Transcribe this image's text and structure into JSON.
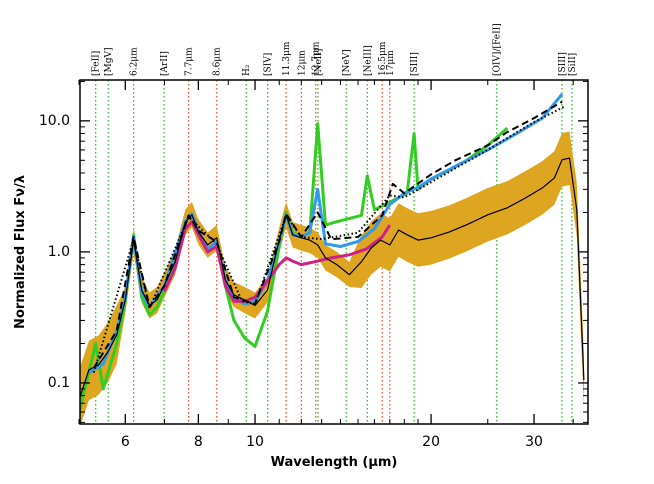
{
  "chart_data": {
    "type": "line",
    "x_label": "Wavelength (μm)",
    "y_label": "Normalized Flux Fν/λ",
    "xscale": "log",
    "yscale": "log",
    "xlim": [
      5.02,
      37.1
    ],
    "ylim": [
      0.0486,
      20.5
    ],
    "xticks": [
      6,
      8,
      10,
      20,
      30
    ],
    "yticks": [
      {
        "value": 10,
        "label": "10.0"
      },
      {
        "value": 1,
        "label": "1.0"
      },
      0.1
    ],
    "xminorticks": [
      5,
      7,
      9,
      11,
      12,
      13,
      14,
      15,
      16,
      17,
      18,
      19,
      25,
      35
    ],
    "yminorticks": [
      0.05,
      0.06,
      0.07,
      0.08,
      0.09,
      0.2,
      0.3,
      0.4,
      0.5,
      0.6,
      0.7,
      0.8,
      0.9,
      2,
      3,
      4,
      5,
      6,
      7,
      8,
      9,
      20
    ],
    "lines": [
      {
        "x": 5.34,
        "label": "[FeII]",
        "color": "#33bb33"
      },
      {
        "x": 5.61,
        "label": "[MgV]",
        "color": "#33bb33"
      },
      {
        "x": 6.2,
        "label": "6.2μm",
        "color": "#ee5533"
      },
      {
        "x": 6.99,
        "label": "[ArII]",
        "color": "#33bb33"
      },
      {
        "x": 7.7,
        "label": "7.7μm",
        "color": "#ee5533"
      },
      {
        "x": 8.6,
        "label": "8.6μm",
        "color": "#ee5533"
      },
      {
        "x": 9.66,
        "label": "H₂",
        "color": "#33bb33"
      },
      {
        "x": 10.51,
        "label": "[SIV]",
        "color": "#33bb33"
      },
      {
        "x": 11.3,
        "label": "11.3μm",
        "color": "#ee5533"
      },
      {
        "x": 12.0,
        "label": "12μm",
        "color": "#ee5533"
      },
      {
        "x": 12.7,
        "label": "12.7μm",
        "color": "#ee5533"
      },
      {
        "x": 12.81,
        "label": "[NeII]",
        "color": "#33bb33"
      },
      {
        "x": 14.32,
        "label": "[NeV]",
        "color": "#33bb33"
      },
      {
        "x": 15.56,
        "label": "[NeIII]",
        "color": "#33bb33"
      },
      {
        "x": 16.5,
        "label": "16.5μm",
        "color": "#ee5533"
      },
      {
        "x": 17.0,
        "label": "17μm",
        "color": "#ee5533"
      },
      {
        "x": 18.71,
        "label": "[SIII]",
        "color": "#33bb33"
      },
      {
        "x": 25.9,
        "label": "[OIV]/[FeII]",
        "color": "#33bb33"
      },
      {
        "x": 33.48,
        "label": "[SIII]",
        "color": "#33bb33"
      },
      {
        "x": 34.82,
        "label": "[SiII]",
        "color": "#33bb33"
      }
    ],
    "series": [
      {
        "kind": "band",
        "color": "#dda520",
        "x": [
          5.0,
          5.2,
          5.4,
          5.6,
          5.8,
          6.0,
          6.2,
          6.4,
          6.6,
          6.8,
          7.0,
          7.3,
          7.6,
          7.8,
          8.0,
          8.3,
          8.6,
          8.9,
          9.2,
          9.6,
          10,
          10.5,
          11,
          11.3,
          11.6,
          12,
          12.4,
          12.8,
          13.2,
          13.8,
          14.5,
          15.2,
          15.8,
          16.4,
          17.0,
          17.6,
          18.2,
          19,
          20,
          21.5,
          23,
          25,
          27,
          29,
          31,
          32.5,
          33.5,
          34.5,
          35.5,
          36.5
        ],
        "low": [
          0.044,
          0.074,
          0.081,
          0.1,
          0.14,
          0.34,
          0.98,
          0.41,
          0.31,
          0.34,
          0.45,
          0.67,
          1.35,
          1.54,
          1.14,
          0.9,
          1.02,
          0.49,
          0.38,
          0.34,
          0.31,
          0.41,
          0.98,
          1.54,
          1.08,
          1.02,
          0.98,
          0.9,
          0.72,
          0.64,
          0.54,
          0.53,
          0.67,
          0.77,
          0.71,
          0.92,
          0.84,
          0.77,
          0.8,
          0.89,
          1.01,
          1.2,
          1.36,
          1.61,
          1.93,
          2.29,
          3.15,
          3.25,
          1.31,
          0.066
        ],
        "high": [
          0.126,
          0.21,
          0.23,
          0.29,
          0.39,
          0.54,
          1.54,
          0.64,
          0.49,
          0.54,
          0.7,
          1.05,
          2.11,
          2.4,
          1.78,
          1.41,
          1.6,
          0.76,
          0.59,
          0.54,
          0.49,
          0.64,
          1.54,
          2.4,
          1.69,
          1.6,
          1.54,
          1.41,
          1.13,
          1.0,
          0.84,
          1.34,
          1.71,
          1.97,
          1.81,
          2.35,
          2.16,
          1.97,
          2.05,
          2.27,
          2.58,
          3.07,
          3.47,
          4.13,
          4.93,
          5.87,
          8.06,
          8.3,
          3.34,
          0.17
        ]
      },
      {
        "kind": "line",
        "color": "#33cc22",
        "dash": "solid",
        "width": 3,
        "x": [
          5.0,
          5.2,
          5.34,
          5.5,
          5.8,
          6.0,
          6.2,
          6.4,
          6.6,
          6.8,
          7.0,
          7.3,
          7.6,
          7.8,
          8.0,
          8.3,
          8.6,
          8.9,
          9.2,
          9.6,
          10,
          10.5,
          11,
          11.3,
          11.6,
          12,
          12.4,
          12.8,
          13.2,
          13.8,
          14.5,
          15.2,
          15.56,
          16,
          17,
          18.2,
          18.71,
          19,
          20,
          21.5,
          23,
          25,
          27
        ],
        "values": [
          0.06,
          0.12,
          0.2,
          0.09,
          0.2,
          0.42,
          1.35,
          0.45,
          0.33,
          0.38,
          0.5,
          0.8,
          1.7,
          1.95,
          1.45,
          1.0,
          1.15,
          0.55,
          0.3,
          0.22,
          0.19,
          0.35,
          1.1,
          2.0,
          1.4,
          1.3,
          1.4,
          9.5,
          1.6,
          1.7,
          1.8,
          1.9,
          3.8,
          2.1,
          2.4,
          2.8,
          8.0,
          3.0,
          3.6,
          4.2,
          5.0,
          6.5,
          8.8
        ]
      },
      {
        "kind": "line",
        "color": "#3399ee",
        "dash": "solid",
        "width": 3,
        "x": [
          5.2,
          5.5,
          5.8,
          6.0,
          6.2,
          6.4,
          6.6,
          7.0,
          7.6,
          7.8,
          8.0,
          8.3,
          8.6,
          8.9,
          9.2,
          9.6,
          10,
          10.5,
          11,
          11.3,
          11.6,
          12,
          12.4,
          12.8,
          13.2,
          14,
          15,
          16,
          17,
          18,
          19,
          20,
          22,
          25,
          28,
          31,
          33.5
        ],
        "values": [
          0.12,
          0.14,
          0.25,
          0.45,
          1.3,
          0.5,
          0.38,
          0.55,
          1.7,
          1.95,
          1.45,
          1.05,
          1.2,
          0.6,
          0.45,
          0.4,
          0.42,
          0.6,
          1.2,
          1.9,
          1.35,
          1.3,
          1.4,
          3.0,
          1.15,
          1.1,
          1.2,
          1.5,
          2.3,
          2.8,
          3.1,
          3.6,
          4.5,
          6.0,
          8.0,
          10.5,
          16
        ]
      },
      {
        "kind": "line",
        "color": "#cc2288",
        "dash": "solid",
        "width": 3,
        "x": [
          7.0,
          7.3,
          7.6,
          7.8,
          8.0,
          8.3,
          8.6,
          8.9,
          9.2,
          9.6,
          10,
          10.5,
          11,
          11.3,
          11.6,
          12,
          12.8,
          13.5,
          14.5,
          15.5,
          16.5,
          17
        ],
        "values": [
          0.5,
          0.75,
          1.5,
          1.7,
          1.35,
          1.0,
          1.1,
          0.55,
          0.42,
          0.42,
          0.45,
          0.6,
          0.8,
          0.9,
          0.85,
          0.8,
          0.85,
          0.9,
          0.95,
          1.05,
          1.3,
          1.6
        ]
      },
      {
        "kind": "line",
        "color": "#000000",
        "dash": "dashed",
        "width": 2,
        "x": [
          5.3,
          5.8,
          6.2,
          6.6,
          7.0,
          7.7,
          8.0,
          8.6,
          9.2,
          10,
          11,
          11.3,
          12,
          12.8,
          13.5,
          15,
          16.5,
          17.2,
          18,
          20,
          22,
          25,
          27,
          30,
          33.5
        ],
        "values": [
          0.13,
          0.25,
          1.3,
          0.38,
          0.55,
          1.9,
          1.45,
          1.2,
          0.45,
          0.4,
          1.2,
          1.95,
          1.3,
          2.0,
          1.25,
          1.3,
          1.9,
          3.3,
          2.8,
          3.9,
          5.0,
          6.5,
          8.2,
          10.5,
          14
        ]
      },
      {
        "kind": "line",
        "color": "#000000",
        "dash": "dotted",
        "width": 2,
        "x": [
          5.3,
          6.2,
          6.6,
          7.7,
          8.6,
          9.5,
          10,
          11.3,
          12,
          13,
          15,
          17,
          18,
          20,
          25,
          30,
          34
        ],
        "values": [
          0.12,
          1.25,
          0.37,
          1.85,
          1.15,
          0.42,
          0.4,
          1.9,
          1.3,
          1.25,
          1.4,
          2.7,
          2.6,
          3.4,
          6.0,
          9.8,
          13
        ]
      },
      {
        "kind": "line",
        "color": "#000000",
        "dash": "solid",
        "width": 1.2,
        "x": [
          5.0,
          5.2,
          5.4,
          5.6,
          5.8,
          6.0,
          6.2,
          6.4,
          6.6,
          6.8,
          7.0,
          7.3,
          7.6,
          7.8,
          8.0,
          8.3,
          8.6,
          8.9,
          9.2,
          9.6,
          10,
          10.5,
          11,
          11.3,
          11.6,
          12,
          12.4,
          12.8,
          13.2,
          13.8,
          14.5,
          15.2,
          15.8,
          16.4,
          17.0,
          17.6,
          18.2,
          19,
          20,
          21.5,
          23,
          25,
          27,
          29,
          31,
          32.5,
          33.5,
          34.5,
          35.5,
          36.5
        ],
        "values": [
          0.074,
          0.126,
          0.137,
          0.172,
          0.232,
          0.43,
          1.23,
          0.51,
          0.39,
          0.43,
          0.56,
          0.84,
          1.69,
          1.92,
          1.42,
          1.13,
          1.28,
          0.61,
          0.47,
          0.43,
          0.39,
          0.51,
          1.23,
          1.92,
          1.35,
          1.28,
          1.23,
          1.13,
          0.9,
          0.8,
          0.67,
          0.84,
          1.07,
          1.23,
          1.13,
          1.47,
          1.35,
          1.23,
          1.28,
          1.42,
          1.61,
          1.92,
          2.17,
          2.58,
          3.08,
          3.67,
          5.04,
          5.2,
          2.09,
          0.105
        ]
      }
    ]
  }
}
